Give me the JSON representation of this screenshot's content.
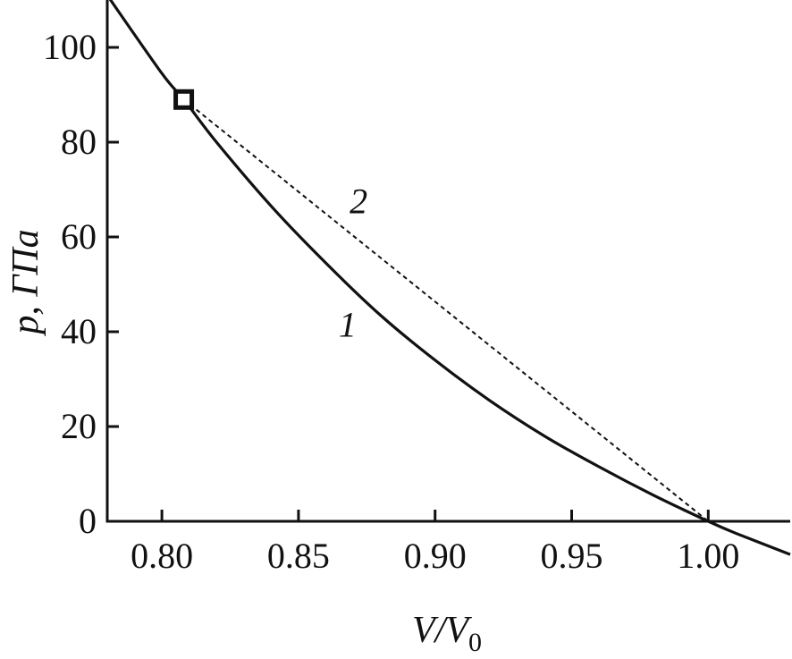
{
  "chart_data": {
    "type": "line",
    "title": "",
    "xlabel": {
      "main": "V/V",
      "sub": "0"
    },
    "ylabel": "p, ГПа",
    "xlim": [
      0.78,
      1.03
    ],
    "ylim": [
      0,
      110
    ],
    "grid": false,
    "x_ticks": [
      "0.80",
      "0.85",
      "0.90",
      "0.95",
      "1.00"
    ],
    "y_ticks": [
      "0",
      "20",
      "40",
      "60",
      "80",
      "100"
    ],
    "series": [
      {
        "name": "1",
        "style": "solid",
        "x": [
          0.78,
          0.8,
          0.808,
          0.82,
          0.84,
          0.86,
          0.88,
          0.9,
          0.92,
          0.94,
          0.96,
          0.98,
          1.0,
          1.01,
          1.03
        ],
        "y": [
          111,
          94.5,
          89,
          80,
          66.5,
          54.5,
          43.5,
          34,
          25.5,
          18,
          11.5,
          5.5,
          0,
          -2.5,
          -7
        ]
      },
      {
        "name": "2",
        "style": "dashed",
        "x": [
          0.808,
          1.0
        ],
        "y": [
          89,
          0
        ]
      }
    ],
    "markers": [
      {
        "x": 0.808,
        "y": 89,
        "shape": "open-square"
      }
    ],
    "annotations": [
      {
        "text": "1",
        "x": 0.868,
        "y": 39
      },
      {
        "text": "2",
        "x": 0.872,
        "y": 65
      }
    ],
    "colors": {
      "line": "#111111",
      "background": "#ffffff"
    }
  }
}
